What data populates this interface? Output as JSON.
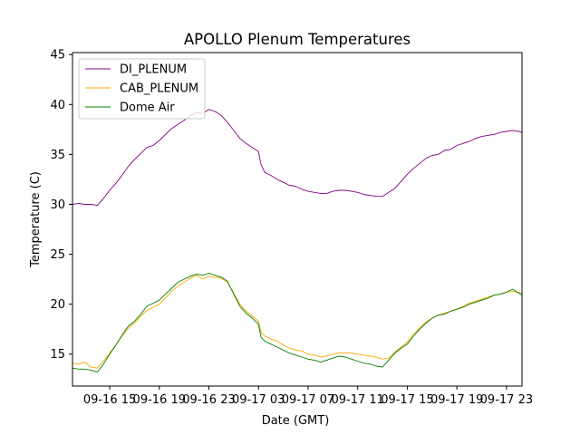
{
  "chart_data": {
    "type": "line",
    "title": "APOLLO Plenum Temperatures",
    "xlabel": "Date (GMT)",
    "ylabel": "Temperature (C)",
    "xlim": [
      12.0,
      48.25
    ],
    "ylim": [
      11.8,
      45.2
    ],
    "xlim_note": "hours after 09-16 00:00 GMT",
    "xticks": [
      {
        "x": 15,
        "label": "09-16 15"
      },
      {
        "x": 19,
        "label": "09-16 19"
      },
      {
        "x": 23,
        "label": "09-16 23"
      },
      {
        "x": 27,
        "label": "09-17 03"
      },
      {
        "x": 31,
        "label": "09-17 07"
      },
      {
        "x": 35,
        "label": "09-17 11"
      },
      {
        "x": 39,
        "label": "09-17 15"
      },
      {
        "x": 43,
        "label": "09-17 19"
      },
      {
        "x": 47,
        "label": "09-17 23"
      }
    ],
    "yticks": [
      {
        "y": 15,
        "label": "15"
      },
      {
        "y": 20,
        "label": "20"
      },
      {
        "y": 25,
        "label": "25"
      },
      {
        "y": 30,
        "label": "30"
      },
      {
        "y": 35,
        "label": "35"
      },
      {
        "y": 40,
        "label": "40"
      },
      {
        "y": 45,
        "label": "45"
      }
    ],
    "grid": false,
    "legend_position": "top-left",
    "series": [
      {
        "name": "DI_PLENUM",
        "color": "#800080",
        "x": [
          12.0,
          12.5,
          13.0,
          13.5,
          14.0,
          14.5,
          15.0,
          15.5,
          16.0,
          16.5,
          17.0,
          17.5,
          18.0,
          18.5,
          19.0,
          19.5,
          20.0,
          20.5,
          21.0,
          21.5,
          22.0,
          22.5,
          23.0,
          23.5,
          24.0,
          24.5,
          25.0,
          25.5,
          26.0,
          26.5,
          27.0,
          27.2,
          27.5,
          28.0,
          28.5,
          29.0,
          29.5,
          30.0,
          30.5,
          31.0,
          31.5,
          32.0,
          32.5,
          33.0,
          33.5,
          34.0,
          34.5,
          35.0,
          35.5,
          36.0,
          36.5,
          37.0,
          37.5,
          38.0,
          38.5,
          39.0,
          39.5,
          40.0,
          40.5,
          41.0,
          41.5,
          42.0,
          42.5,
          43.0,
          43.5,
          44.0,
          44.5,
          45.0,
          45.5,
          46.0,
          46.5,
          47.0,
          47.5,
          48.0,
          48.25
        ],
        "values": [
          30.0,
          30.1,
          30.0,
          30.0,
          29.9,
          30.6,
          31.4,
          32.1,
          32.9,
          33.8,
          34.5,
          35.1,
          35.7,
          35.9,
          36.4,
          37.0,
          37.6,
          38.0,
          38.4,
          38.9,
          39.2,
          39.1,
          39.5,
          39.3,
          38.9,
          38.2,
          37.4,
          36.6,
          36.1,
          35.7,
          35.3,
          34.0,
          33.2,
          32.9,
          32.5,
          32.2,
          31.9,
          31.8,
          31.5,
          31.3,
          31.2,
          31.1,
          31.1,
          31.3,
          31.4,
          31.4,
          31.3,
          31.2,
          31.0,
          30.9,
          30.8,
          30.8,
          31.2,
          31.6,
          32.3,
          33.0,
          33.6,
          34.1,
          34.6,
          34.9,
          35.0,
          35.4,
          35.5,
          35.9,
          36.1,
          36.3,
          36.6,
          36.8,
          36.9,
          37.0,
          37.2,
          37.3,
          37.4,
          37.3,
          37.2
        ]
      },
      {
        "name": "CAB_PLENUM",
        "color": "#ffa500",
        "x": [
          12.0,
          12.5,
          13.0,
          13.5,
          14.0,
          14.5,
          15.0,
          15.5,
          16.0,
          16.5,
          17.0,
          17.5,
          18.0,
          18.5,
          19.0,
          19.5,
          20.0,
          20.5,
          21.0,
          21.5,
          22.0,
          22.5,
          23.0,
          23.5,
          24.0,
          24.5,
          25.0,
          25.5,
          26.0,
          26.5,
          27.0,
          27.2,
          27.5,
          28.0,
          28.5,
          29.0,
          29.5,
          30.0,
          30.5,
          31.0,
          31.5,
          32.0,
          32.5,
          33.0,
          33.5,
          34.0,
          34.5,
          35.0,
          35.5,
          36.0,
          36.5,
          37.0,
          37.5,
          38.0,
          38.5,
          39.0,
          39.5,
          40.0,
          40.5,
          41.0,
          41.5,
          42.0,
          42.5,
          43.0,
          43.5,
          44.0,
          44.5,
          45.0,
          45.5,
          46.0,
          46.5,
          47.0,
          47.5,
          48.0,
          48.25
        ],
        "values": [
          14.1,
          14.0,
          14.2,
          13.7,
          13.6,
          14.3,
          15.1,
          15.9,
          16.8,
          17.6,
          18.1,
          18.8,
          19.4,
          19.7,
          20.0,
          20.6,
          21.3,
          21.8,
          22.2,
          22.6,
          22.9,
          22.5,
          22.8,
          22.7,
          22.6,
          22.2,
          21.1,
          20.0,
          19.3,
          18.8,
          18.3,
          17.2,
          16.8,
          16.5,
          16.3,
          15.9,
          15.6,
          15.4,
          15.3,
          15.0,
          14.9,
          14.7,
          14.8,
          15.0,
          15.1,
          15.1,
          15.1,
          15.0,
          14.9,
          14.8,
          14.7,
          14.5,
          14.6,
          15.2,
          15.7,
          16.2,
          17.0,
          17.6,
          18.2,
          18.6,
          18.9,
          19.1,
          19.3,
          19.5,
          19.8,
          20.1,
          20.3,
          20.5,
          20.7,
          20.9,
          21.0,
          21.2,
          21.3,
          21.2,
          21.1
        ]
      },
      {
        "name": "Dome Air",
        "color": "#008000",
        "x": [
          12.0,
          12.5,
          13.0,
          13.5,
          14.0,
          14.5,
          15.0,
          15.5,
          16.0,
          16.5,
          17.0,
          17.5,
          18.0,
          18.5,
          19.0,
          19.5,
          20.0,
          20.5,
          21.0,
          21.5,
          22.0,
          22.5,
          23.0,
          23.5,
          24.0,
          24.5,
          25.0,
          25.5,
          26.0,
          26.5,
          27.0,
          27.2,
          27.5,
          28.0,
          28.5,
          29.0,
          29.5,
          30.0,
          30.5,
          31.0,
          31.5,
          32.0,
          32.5,
          33.0,
          33.5,
          34.0,
          34.5,
          35.0,
          35.5,
          36.0,
          36.5,
          37.0,
          37.5,
          38.0,
          38.5,
          39.0,
          39.5,
          40.0,
          40.5,
          41.0,
          41.5,
          42.0,
          42.5,
          43.0,
          43.5,
          44.0,
          44.5,
          45.0,
          45.5,
          46.0,
          46.5,
          47.0,
          47.5,
          48.0,
          48.25
        ],
        "values": [
          13.6,
          13.5,
          13.5,
          13.4,
          13.2,
          14.0,
          15.0,
          15.9,
          16.9,
          17.8,
          18.3,
          19.0,
          19.8,
          20.1,
          20.4,
          21.0,
          21.6,
          22.2,
          22.5,
          22.8,
          23.0,
          22.9,
          23.1,
          22.9,
          22.7,
          22.3,
          21.0,
          19.8,
          19.1,
          18.6,
          18.0,
          16.7,
          16.3,
          16.0,
          15.7,
          15.4,
          15.1,
          14.9,
          14.7,
          14.5,
          14.4,
          14.2,
          14.4,
          14.6,
          14.8,
          14.7,
          14.5,
          14.3,
          14.1,
          14.0,
          13.8,
          13.7,
          14.4,
          15.1,
          15.6,
          16.0,
          16.8,
          17.5,
          18.1,
          18.6,
          18.9,
          19.0,
          19.3,
          19.5,
          19.7,
          20.0,
          20.2,
          20.4,
          20.6,
          20.9,
          21.0,
          21.2,
          21.5,
          21.1,
          20.9
        ]
      }
    ]
  }
}
